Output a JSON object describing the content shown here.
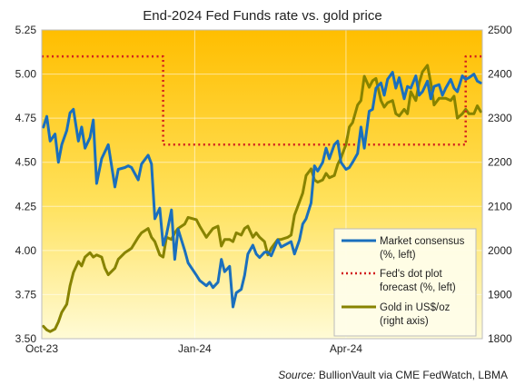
{
  "chart_data": {
    "type": "line",
    "title": "End-2024 Fed Funds rate vs. gold price",
    "source_prefix": "Source:",
    "source_text": "BullionVault via CME FedWatch, LBMA",
    "left_axis": {
      "ylim": [
        3.5,
        5.25
      ],
      "ticks": [
        "5.25",
        "5.00",
        "4.75",
        "4.50",
        "4.25",
        "4.00",
        "3.75",
        "3.50"
      ]
    },
    "right_axis": {
      "ylim": [
        1800,
        2500
      ],
      "ticks": [
        "2500",
        "2400",
        "2300",
        "2200",
        "2100",
        "2000",
        "1900",
        "1800"
      ]
    },
    "x_ticks": [
      "Oct-23",
      "Jan-24",
      "Apr-24"
    ],
    "x_tick_dates": [
      "2023-10-01",
      "2024-01-01",
      "2024-04-01"
    ],
    "x_range": [
      "2023-10-01",
      "2024-06-22"
    ],
    "grid": true,
    "legend_position": "bottom-right",
    "colors": {
      "market": "#1a6fbd",
      "dot_plot": "#d21e1e",
      "gold": "#878300",
      "bg_top": "#ffbe00",
      "bg_bottom": "#fffbd6"
    },
    "series": [
      {
        "name": "Market consensus (%, left)",
        "legend_lines": [
          "Market consensus",
          "(%, left)"
        ],
        "axis": "left",
        "style": "solid",
        "points": [
          [
            "2023-10-02",
            4.7
          ],
          [
            "2023-10-04",
            4.76
          ],
          [
            "2023-10-06",
            4.62
          ],
          [
            "2023-10-09",
            4.66
          ],
          [
            "2023-10-11",
            4.5
          ],
          [
            "2023-10-13",
            4.6
          ],
          [
            "2023-10-16",
            4.68
          ],
          [
            "2023-10-18",
            4.78
          ],
          [
            "2023-10-20",
            4.8
          ],
          [
            "2023-10-23",
            4.62
          ],
          [
            "2023-10-25",
            4.7
          ],
          [
            "2023-10-27",
            4.58
          ],
          [
            "2023-10-30",
            4.64
          ],
          [
            "2023-11-01",
            4.74
          ],
          [
            "2023-11-03",
            4.38
          ],
          [
            "2023-11-06",
            4.52
          ],
          [
            "2023-11-08",
            4.56
          ],
          [
            "2023-11-10",
            4.6
          ],
          [
            "2023-11-14",
            4.36
          ],
          [
            "2023-11-16",
            4.46
          ],
          [
            "2023-11-20",
            4.47
          ],
          [
            "2023-11-22",
            4.48
          ],
          [
            "2023-11-24",
            4.47
          ],
          [
            "2023-11-28",
            4.4
          ],
          [
            "2023-11-30",
            4.49
          ],
          [
            "2023-12-04",
            4.54
          ],
          [
            "2023-12-06",
            4.49
          ],
          [
            "2023-12-08",
            4.18
          ],
          [
            "2023-12-11",
            4.24
          ],
          [
            "2023-12-13",
            4.03
          ],
          [
            "2023-12-15",
            4.09
          ],
          [
            "2023-12-18",
            4.23
          ],
          [
            "2023-12-20",
            3.95
          ],
          [
            "2023-12-22",
            4.12
          ],
          [
            "2023-12-26",
            4.0
          ],
          [
            "2023-12-28",
            3.93
          ],
          [
            "2024-01-02",
            3.86
          ],
          [
            "2024-01-04",
            3.83
          ],
          [
            "2024-01-08",
            3.8
          ],
          [
            "2024-01-10",
            3.82
          ],
          [
            "2024-01-12",
            3.79
          ],
          [
            "2024-01-15",
            3.82
          ],
          [
            "2024-01-17",
            3.95
          ],
          [
            "2024-01-19",
            3.88
          ],
          [
            "2024-01-22",
            3.91
          ],
          [
            "2024-01-24",
            3.68
          ],
          [
            "2024-01-26",
            3.76
          ],
          [
            "2024-01-29",
            3.78
          ],
          [
            "2024-01-31",
            3.86
          ],
          [
            "2024-02-02",
            3.98
          ],
          [
            "2024-02-05",
            4.03
          ],
          [
            "2024-02-07",
            3.98
          ],
          [
            "2024-02-09",
            3.96
          ],
          [
            "2024-02-12",
            3.99
          ],
          [
            "2024-02-14",
            3.99
          ],
          [
            "2024-02-16",
            3.97
          ],
          [
            "2024-02-20",
            4.06
          ],
          [
            "2024-02-22",
            4.02
          ],
          [
            "2024-02-26",
            4.04
          ],
          [
            "2024-02-28",
            4.05
          ],
          [
            "2024-03-01",
            3.98
          ],
          [
            "2024-03-04",
            4.06
          ],
          [
            "2024-03-06",
            4.15
          ],
          [
            "2024-03-08",
            4.18
          ],
          [
            "2024-03-11",
            4.27
          ],
          [
            "2024-03-13",
            4.48
          ],
          [
            "2024-03-15",
            4.45
          ],
          [
            "2024-03-18",
            4.5
          ],
          [
            "2024-03-20",
            4.58
          ],
          [
            "2024-03-22",
            4.52
          ],
          [
            "2024-03-25",
            4.6
          ],
          [
            "2024-03-27",
            4.62
          ],
          [
            "2024-03-29",
            4.5
          ],
          [
            "2024-04-01",
            4.46
          ],
          [
            "2024-04-03",
            4.47
          ],
          [
            "2024-04-05",
            4.5
          ],
          [
            "2024-04-08",
            4.55
          ],
          [
            "2024-04-10",
            4.7
          ],
          [
            "2024-04-12",
            4.58
          ],
          [
            "2024-04-15",
            4.79
          ],
          [
            "2024-04-17",
            4.8
          ],
          [
            "2024-04-19",
            4.92
          ],
          [
            "2024-04-22",
            4.95
          ],
          [
            "2024-04-24",
            4.88
          ],
          [
            "2024-04-26",
            4.97
          ],
          [
            "2024-04-29",
            5.01
          ],
          [
            "2024-05-01",
            4.92
          ],
          [
            "2024-05-03",
            4.98
          ],
          [
            "2024-05-06",
            4.86
          ],
          [
            "2024-05-08",
            4.93
          ],
          [
            "2024-05-10",
            4.92
          ],
          [
            "2024-05-13",
            4.99
          ],
          [
            "2024-05-15",
            4.88
          ],
          [
            "2024-05-17",
            4.9
          ],
          [
            "2024-05-20",
            4.96
          ],
          [
            "2024-05-22",
            4.86
          ],
          [
            "2024-05-24",
            4.93
          ],
          [
            "2024-05-27",
            4.94
          ],
          [
            "2024-05-29",
            4.88
          ],
          [
            "2024-05-31",
            4.92
          ],
          [
            "2024-06-03",
            4.97
          ],
          [
            "2024-06-05",
            4.92
          ],
          [
            "2024-06-07",
            4.9
          ],
          [
            "2024-06-10",
            4.99
          ],
          [
            "2024-06-12",
            4.97
          ],
          [
            "2024-06-14",
            4.98
          ],
          [
            "2024-06-17",
            5.0
          ],
          [
            "2024-06-19",
            4.96
          ],
          [
            "2024-06-21",
            4.95
          ]
        ]
      },
      {
        "name": "Fed's dot plot forecast (%, left)",
        "legend_lines": [
          "Fed's dot plot",
          "forecast (%, left)"
        ],
        "axis": "left",
        "style": "dotted",
        "points": [
          [
            "2023-10-01",
            5.1
          ],
          [
            "2023-12-13",
            5.1
          ],
          [
            "2023-12-13",
            4.6
          ],
          [
            "2024-06-12",
            4.6
          ],
          [
            "2024-06-12",
            5.1
          ],
          [
            "2024-06-22",
            5.1
          ]
        ]
      },
      {
        "name": "Gold in US$/oz (right axis)",
        "legend_lines": [
          "Gold in US$/oz",
          "(right axis)"
        ],
        "axis": "right",
        "style": "solid",
        "points": [
          [
            "2023-10-02",
            1828
          ],
          [
            "2023-10-04",
            1820
          ],
          [
            "2023-10-06",
            1816
          ],
          [
            "2023-10-09",
            1822
          ],
          [
            "2023-10-11",
            1838
          ],
          [
            "2023-10-13",
            1860
          ],
          [
            "2023-10-16",
            1878
          ],
          [
            "2023-10-18",
            1920
          ],
          [
            "2023-10-20",
            1950
          ],
          [
            "2023-10-23",
            1975
          ],
          [
            "2023-10-25",
            1965
          ],
          [
            "2023-10-27",
            1985
          ],
          [
            "2023-10-30",
            1995
          ],
          [
            "2023-11-01",
            1985
          ],
          [
            "2023-11-03",
            1990
          ],
          [
            "2023-11-06",
            1985
          ],
          [
            "2023-11-08",
            1960
          ],
          [
            "2023-11-10",
            1945
          ],
          [
            "2023-11-14",
            1960
          ],
          [
            "2023-11-16",
            1980
          ],
          [
            "2023-11-20",
            1995
          ],
          [
            "2023-11-22",
            2000
          ],
          [
            "2023-11-24",
            2005
          ],
          [
            "2023-11-28",
            2030
          ],
          [
            "2023-11-30",
            2040
          ],
          [
            "2023-12-04",
            2050
          ],
          [
            "2023-12-06",
            2030
          ],
          [
            "2023-12-08",
            2020
          ],
          [
            "2023-12-11",
            1990
          ],
          [
            "2023-12-13",
            1985
          ],
          [
            "2023-12-15",
            2030
          ],
          [
            "2023-12-18",
            2025
          ],
          [
            "2023-12-20",
            2040
          ],
          [
            "2023-12-22",
            2050
          ],
          [
            "2023-12-26",
            2060
          ],
          [
            "2023-12-28",
            2075
          ],
          [
            "2024-01-02",
            2070
          ],
          [
            "2024-01-04",
            2055
          ],
          [
            "2024-01-08",
            2030
          ],
          [
            "2024-01-10",
            2040
          ],
          [
            "2024-01-12",
            2050
          ],
          [
            "2024-01-15",
            2055
          ],
          [
            "2024-01-17",
            2010
          ],
          [
            "2024-01-19",
            2025
          ],
          [
            "2024-01-22",
            2025
          ],
          [
            "2024-01-24",
            2020
          ],
          [
            "2024-01-26",
            2040
          ],
          [
            "2024-01-29",
            2035
          ],
          [
            "2024-01-31",
            2050
          ],
          [
            "2024-02-02",
            2055
          ],
          [
            "2024-02-05",
            2030
          ],
          [
            "2024-02-07",
            2040
          ],
          [
            "2024-02-09",
            2030
          ],
          [
            "2024-02-12",
            2020
          ],
          [
            "2024-02-14",
            1990
          ],
          [
            "2024-02-16",
            2005
          ],
          [
            "2024-02-20",
            2025
          ],
          [
            "2024-02-22",
            2025
          ],
          [
            "2024-02-26",
            2030
          ],
          [
            "2024-02-28",
            2035
          ],
          [
            "2024-03-01",
            2080
          ],
          [
            "2024-03-04",
            2110
          ],
          [
            "2024-03-06",
            2130
          ],
          [
            "2024-03-08",
            2170
          ],
          [
            "2024-03-11",
            2185
          ],
          [
            "2024-03-13",
            2160
          ],
          [
            "2024-03-15",
            2155
          ],
          [
            "2024-03-18",
            2160
          ],
          [
            "2024-03-20",
            2175
          ],
          [
            "2024-03-22",
            2165
          ],
          [
            "2024-03-25",
            2170
          ],
          [
            "2024-03-27",
            2195
          ],
          [
            "2024-03-29",
            2210
          ],
          [
            "2024-04-01",
            2240
          ],
          [
            "2024-04-03",
            2280
          ],
          [
            "2024-04-05",
            2290
          ],
          [
            "2024-04-08",
            2330
          ],
          [
            "2024-04-10",
            2340
          ],
          [
            "2024-04-12",
            2395
          ],
          [
            "2024-04-15",
            2370
          ],
          [
            "2024-04-17",
            2385
          ],
          [
            "2024-04-19",
            2390
          ],
          [
            "2024-04-22",
            2340
          ],
          [
            "2024-04-24",
            2325
          ],
          [
            "2024-04-26",
            2335
          ],
          [
            "2024-04-29",
            2340
          ],
          [
            "2024-05-01",
            2310
          ],
          [
            "2024-05-03",
            2305
          ],
          [
            "2024-05-06",
            2320
          ],
          [
            "2024-05-08",
            2310
          ],
          [
            "2024-05-10",
            2360
          ],
          [
            "2024-05-13",
            2340
          ],
          [
            "2024-05-15",
            2380
          ],
          [
            "2024-05-17",
            2405
          ],
          [
            "2024-05-20",
            2420
          ],
          [
            "2024-05-22",
            2380
          ],
          [
            "2024-05-24",
            2330
          ],
          [
            "2024-05-27",
            2345
          ],
          [
            "2024-05-29",
            2345
          ],
          [
            "2024-05-31",
            2345
          ],
          [
            "2024-06-03",
            2340
          ],
          [
            "2024-06-05",
            2350
          ],
          [
            "2024-06-07",
            2300
          ],
          [
            "2024-06-10",
            2310
          ],
          [
            "2024-06-12",
            2320
          ],
          [
            "2024-06-14",
            2310
          ],
          [
            "2024-06-17",
            2310
          ],
          [
            "2024-06-19",
            2328
          ],
          [
            "2024-06-21",
            2315
          ]
        ]
      }
    ]
  }
}
